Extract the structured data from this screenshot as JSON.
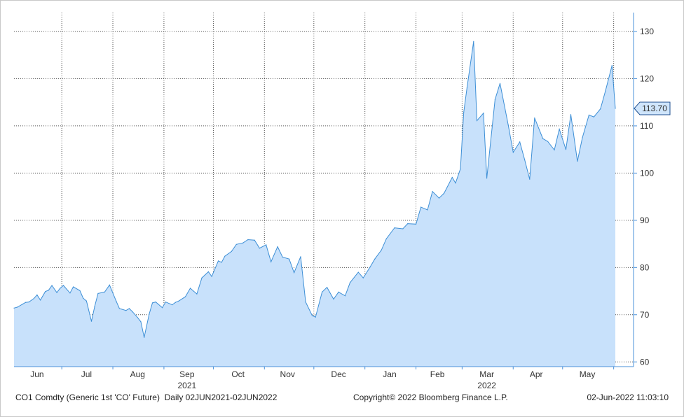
{
  "chart_data": {
    "type": "area",
    "security": "CO1 Comdty (Generic 1st 'CO' Future)",
    "period": "Daily 02JUN2021-02JUN2022",
    "copyright": "Copyright© 2022 Bloomberg Finance L.P.",
    "timestamp": "02-Jun-2022 11:03:10",
    "last_value_label": "113.70",
    "last_value": 113.7,
    "ylim": [
      59,
      134
    ],
    "yticks": [
      60,
      70,
      80,
      90,
      100,
      110,
      120,
      130
    ],
    "y_axis_position": "right",
    "grid": true,
    "colors": {
      "line": "#3d8fd6",
      "fill": "#c8e1fb",
      "label_bg": "#cfe5fb",
      "grid": "#555555"
    },
    "xlim": [
      "2021-06-02",
      "2022-06-02"
    ],
    "month_labels": [
      {
        "label": "Jun",
        "date": "2021-06-16"
      },
      {
        "label": "Jul",
        "date": "2021-07-16"
      },
      {
        "label": "Aug",
        "date": "2021-08-16"
      },
      {
        "label": "Sep",
        "date": "2021-09-15"
      },
      {
        "label": "Oct",
        "date": "2021-10-16"
      },
      {
        "label": "Nov",
        "date": "2021-11-15"
      },
      {
        "label": "Dec",
        "date": "2021-12-16"
      },
      {
        "label": "Jan",
        "date": "2022-01-16"
      },
      {
        "label": "Feb",
        "date": "2022-02-14"
      },
      {
        "label": "Mar",
        "date": "2022-03-16"
      },
      {
        "label": "Apr",
        "date": "2022-04-15"
      },
      {
        "label": "May",
        "date": "2022-05-16"
      }
    ],
    "year_labels": [
      {
        "label": "2021",
        "date": "2021-09-15"
      },
      {
        "label": "2022",
        "date": "2022-03-16"
      }
    ],
    "month_boundaries": [
      "2021-07-01",
      "2021-08-01",
      "2021-09-01",
      "2021-10-01",
      "2021-11-01",
      "2021-12-01",
      "2022-01-01",
      "2022-02-01",
      "2022-03-01",
      "2022-04-01",
      "2022-05-01",
      "2022-06-01"
    ],
    "x": [
      "2021-06-02",
      "2021-06-04",
      "2021-06-07",
      "2021-06-09",
      "2021-06-11",
      "2021-06-14",
      "2021-06-16",
      "2021-06-18",
      "2021-06-21",
      "2021-06-23",
      "2021-06-25",
      "2021-06-28",
      "2021-06-30",
      "2021-07-02",
      "2021-07-06",
      "2021-07-08",
      "2021-07-12",
      "2021-07-14",
      "2021-07-16",
      "2021-07-19",
      "2021-07-21",
      "2021-07-23",
      "2021-07-27",
      "2021-07-30",
      "2021-08-03",
      "2021-08-05",
      "2021-08-09",
      "2021-08-11",
      "2021-08-13",
      "2021-08-16",
      "2021-08-18",
      "2021-08-20",
      "2021-08-23",
      "2021-08-25",
      "2021-08-27",
      "2021-08-31",
      "2021-09-02",
      "2021-09-06",
      "2021-09-08",
      "2021-09-10",
      "2021-09-14",
      "2021-09-17",
      "2021-09-21",
      "2021-09-24",
      "2021-09-28",
      "2021-09-30",
      "2021-10-04",
      "2021-10-06",
      "2021-10-08",
      "2021-10-12",
      "2021-10-15",
      "2021-10-19",
      "2021-10-22",
      "2021-10-26",
      "2021-10-29",
      "2021-11-02",
      "2021-11-05",
      "2021-11-09",
      "2021-11-12",
      "2021-11-16",
      "2021-11-19",
      "2021-11-23",
      "2021-11-26",
      "2021-11-30",
      "2021-12-02",
      "2021-12-06",
      "2021-12-09",
      "2021-12-13",
      "2021-12-16",
      "2021-12-20",
      "2021-12-23",
      "2021-12-28",
      "2021-12-31",
      "2022-01-04",
      "2022-01-07",
      "2022-01-11",
      "2022-01-14",
      "2022-01-19",
      "2022-01-24",
      "2022-01-27",
      "2022-02-01",
      "2022-02-04",
      "2022-02-08",
      "2022-02-11",
      "2022-02-15",
      "2022-02-18",
      "2022-02-23",
      "2022-02-25",
      "2022-02-28",
      "2022-03-02",
      "2022-03-04",
      "2022-03-08",
      "2022-03-10",
      "2022-03-14",
      "2022-03-16",
      "2022-03-21",
      "2022-03-24",
      "2022-03-29",
      "2022-04-01",
      "2022-04-05",
      "2022-04-08",
      "2022-04-11",
      "2022-04-14",
      "2022-04-19",
      "2022-04-22",
      "2022-04-26",
      "2022-04-29",
      "2022-05-03",
      "2022-05-06",
      "2022-05-10",
      "2022-05-13",
      "2022-05-17",
      "2022-05-20",
      "2022-05-24",
      "2022-05-27",
      "2022-05-31",
      "2022-06-02"
    ],
    "y": [
      71.4,
      71.6,
      72.2,
      72.6,
      72.7,
      73.4,
      74.2,
      73.1,
      74.9,
      75.2,
      76.2,
      74.7,
      75.6,
      76.2,
      74.6,
      75.9,
      75.1,
      73.5,
      72.9,
      68.6,
      71.8,
      74.5,
      74.8,
      76.3,
      72.9,
      71.3,
      70.9,
      71.3,
      70.6,
      69.4,
      68.5,
      65.2,
      70.1,
      72.5,
      72.7,
      71.5,
      72.7,
      72.1,
      72.6,
      72.9,
      73.8,
      75.6,
      74.4,
      77.8,
      79.1,
      78.1,
      81.4,
      81.1,
      82.4,
      83.4,
      84.9,
      85.2,
      85.9,
      85.8,
      84.1,
      84.8,
      81.2,
      84.4,
      82.2,
      81.8,
      78.9,
      82.3,
      72.7,
      69.8,
      69.5,
      74.8,
      75.8,
      73.3,
      74.8,
      74.0,
      76.8,
      79.0,
      77.8,
      80.0,
      81.8,
      83.7,
      86.1,
      88.4,
      88.2,
      89.3,
      89.2,
      92.8,
      92.2,
      96.1,
      94.7,
      95.7,
      99.1,
      97.9,
      100.9,
      112.9,
      118.1,
      127.9,
      111.1,
      112.7,
      98.9,
      115.6,
      119.0,
      110.2,
      104.4,
      106.6,
      102.8,
      98.7,
      111.7,
      107.3,
      106.7,
      104.9,
      109.3,
      105.0,
      112.4,
      102.5,
      107.5,
      112.3,
      111.9,
      113.6,
      117.4,
      122.8,
      113.7
    ]
  }
}
